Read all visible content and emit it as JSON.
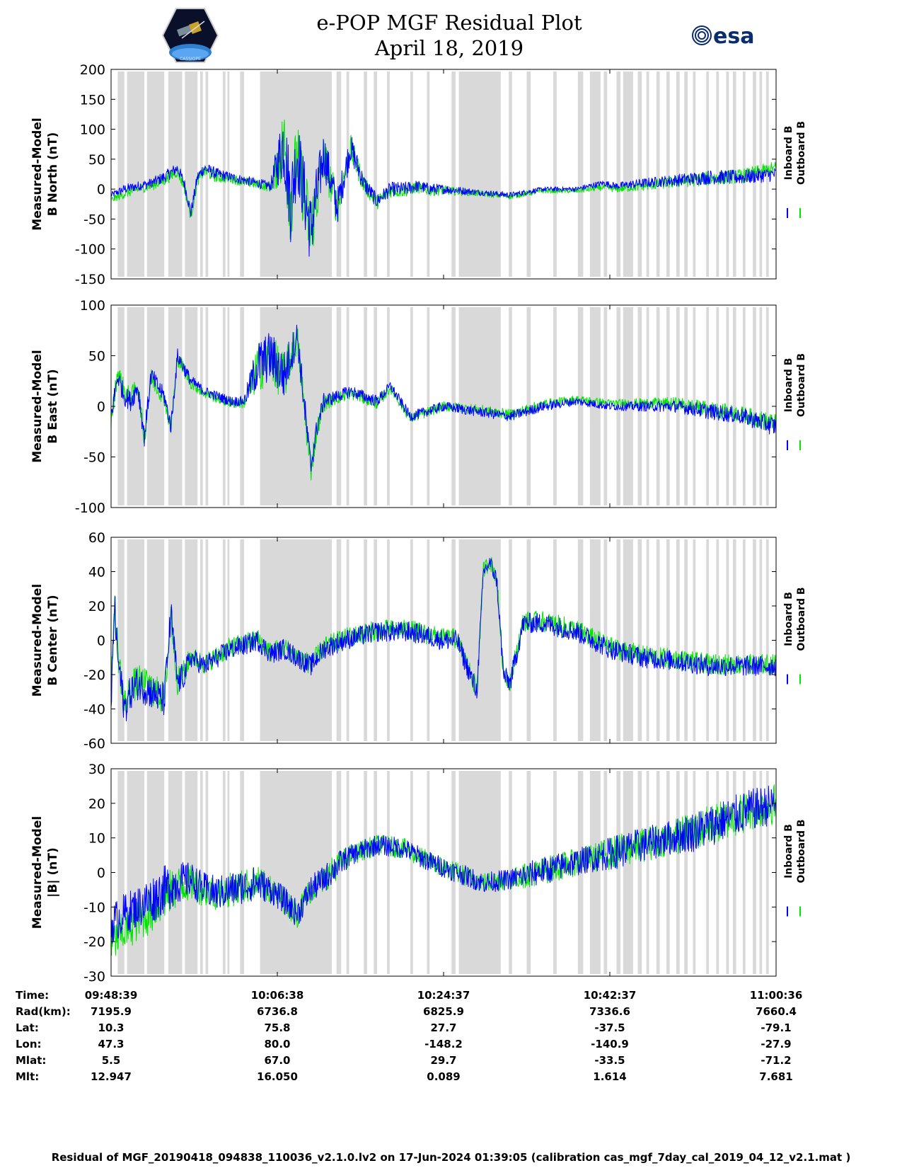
{
  "header": {
    "title_line1": "e-POP MGF Residual Plot",
    "title_line2": "April 18, 2019",
    "logo_left": "cassiope-epop-mission-logo",
    "logo_right": "esa-logo"
  },
  "colors": {
    "inboard": "#0000ff",
    "outboard": "#00e600",
    "shade": "#d9d9d9",
    "axis": "#000000"
  },
  "legend": {
    "inboard": "Inboard B",
    "outboard": "Outboard B"
  },
  "chart_data": [
    {
      "type": "line",
      "ylabel": [
        "Measured-Model",
        "B North (nT)"
      ],
      "ylim": [
        -150,
        200
      ],
      "yticks": [
        -150,
        -100,
        -50,
        0,
        50,
        100,
        150,
        200
      ],
      "x": [
        0,
        2,
        4,
        6,
        8,
        10,
        11,
        12,
        13,
        14,
        16,
        18,
        20,
        22,
        24,
        26,
        27,
        28,
        30,
        32,
        34,
        36,
        38,
        40,
        42,
        44,
        46,
        48,
        50,
        55,
        60,
        65,
        70,
        72,
        74,
        76,
        80,
        85,
        90,
        95,
        100
      ],
      "series": [
        {
          "name": "Inboard B",
          "values": [
            -10,
            0,
            5,
            10,
            20,
            35,
            10,
            -40,
            20,
            35,
            25,
            20,
            15,
            10,
            5,
            80,
            -20,
            60,
            -70,
            60,
            -30,
            70,
            10,
            -20,
            0,
            0,
            5,
            0,
            0,
            -5,
            -10,
            0,
            0,
            5,
            10,
            5,
            10,
            15,
            20,
            20,
            25
          ]
        },
        {
          "name": "Outboard B",
          "values": [
            -18,
            -8,
            0,
            5,
            15,
            30,
            5,
            -45,
            15,
            30,
            20,
            18,
            12,
            8,
            3,
            75,
            -22,
            55,
            -72,
            55,
            -32,
            68,
            8,
            -22,
            -2,
            -2,
            3,
            -2,
            -2,
            -7,
            -12,
            -3,
            -3,
            0,
            3,
            0,
            5,
            12,
            18,
            22,
            35
          ]
        }
      ],
      "envelope": [
        5,
        8,
        8,
        8,
        10,
        10,
        10,
        10,
        10,
        10,
        10,
        8,
        8,
        8,
        8,
        70,
        70,
        60,
        60,
        40,
        30,
        25,
        15,
        12,
        12,
        12,
        10,
        10,
        8,
        5,
        5,
        4,
        4,
        5,
        5,
        6,
        8,
        10,
        12,
        12,
        12
      ]
    },
    {
      "type": "line",
      "ylabel": [
        "Measured-Model",
        "B East (nT)"
      ],
      "ylim": [
        -100,
        100
      ],
      "yticks": [
        -100,
        -50,
        0,
        50,
        100
      ],
      "x": [
        0,
        1,
        2,
        3,
        4,
        5,
        6,
        8,
        9,
        10,
        12,
        14,
        16,
        18,
        20,
        22,
        24,
        26,
        28,
        30,
        31,
        32,
        34,
        36,
        38,
        40,
        42,
        45,
        50,
        55,
        60,
        65,
        70,
        75,
        80,
        85,
        90,
        95,
        100
      ],
      "series": [
        {
          "name": "Inboard B",
          "values": [
            -10,
            30,
            10,
            5,
            20,
            -30,
            30,
            10,
            -20,
            50,
            25,
            15,
            10,
            5,
            5,
            40,
            50,
            30,
            70,
            -60,
            -20,
            5,
            10,
            15,
            10,
            5,
            20,
            -10,
            0,
            -5,
            -10,
            0,
            5,
            0,
            0,
            0,
            -5,
            -10,
            -20
          ]
        },
        {
          "name": "Outboard B",
          "values": [
            -15,
            35,
            15,
            8,
            22,
            -32,
            28,
            8,
            -22,
            48,
            23,
            13,
            8,
            3,
            3,
            38,
            48,
            28,
            68,
            -62,
            -22,
            3,
            8,
            13,
            8,
            3,
            18,
            -12,
            0,
            -3,
            -8,
            2,
            7,
            3,
            3,
            3,
            -3,
            -8,
            -18
          ]
        }
      ],
      "envelope": [
        10,
        10,
        10,
        10,
        10,
        10,
        10,
        8,
        8,
        8,
        6,
        5,
        5,
        5,
        5,
        25,
        25,
        25,
        15,
        15,
        10,
        8,
        6,
        6,
        6,
        6,
        5,
        5,
        5,
        5,
        5,
        5,
        4,
        4,
        5,
        6,
        8,
        8,
        10
      ]
    },
    {
      "type": "line",
      "ylabel": [
        "Measured-Model",
        "B Center (nT)"
      ],
      "ylim": [
        -60,
        60
      ],
      "yticks": [
        -60,
        -40,
        -20,
        0,
        20,
        40,
        60
      ],
      "x": [
        0,
        0.5,
        1,
        2,
        3,
        4,
        6,
        8,
        9,
        10,
        11,
        12,
        14,
        16,
        18,
        20,
        22,
        24,
        26,
        28,
        30,
        32,
        35,
        40,
        45,
        50,
        52,
        54,
        55,
        56,
        57,
        58,
        59,
        60,
        62,
        65,
        70,
        75,
        80,
        85,
        90,
        95,
        100
      ],
      "series": [
        {
          "name": "Inboard B",
          "values": [
            -40,
            20,
            -10,
            -40,
            -30,
            -25,
            -30,
            -35,
            15,
            -25,
            -20,
            -10,
            -15,
            -10,
            -5,
            -3,
            0,
            -8,
            -5,
            -10,
            -15,
            -5,
            0,
            5,
            5,
            0,
            0,
            -20,
            -30,
            40,
            45,
            35,
            -20,
            -25,
            10,
            10,
            5,
            -5,
            -10,
            -12,
            -15,
            -15,
            -15
          ]
        },
        {
          "name": "Outboard B",
          "values": [
            -35,
            25,
            -5,
            -38,
            -28,
            -24,
            -28,
            -34,
            14,
            -24,
            -19,
            -9,
            -14,
            -9,
            -4,
            -2,
            1,
            -7,
            -4,
            -9,
            -14,
            -4,
            1,
            6,
            6,
            1,
            1,
            -19,
            -29,
            41,
            46,
            36,
            -19,
            -24,
            11,
            11,
            6,
            -4,
            -9,
            -11,
            -14,
            -14,
            -14
          ]
        }
      ],
      "envelope": [
        8,
        10,
        10,
        10,
        10,
        10,
        10,
        10,
        10,
        8,
        8,
        6,
        6,
        6,
        6,
        6,
        6,
        6,
        6,
        6,
        6,
        6,
        6,
        6,
        6,
        6,
        6,
        6,
        6,
        5,
        5,
        5,
        6,
        6,
        6,
        6,
        6,
        6,
        6,
        6,
        6,
        6,
        6
      ]
    },
    {
      "type": "line",
      "ylabel": [
        "Measured-Model",
        "|B| (nT)"
      ],
      "ylim": [
        -30,
        30
      ],
      "yticks": [
        -30,
        -20,
        -10,
        0,
        10,
        20,
        30
      ],
      "x": [
        0,
        2,
        4,
        6,
        8,
        10,
        12,
        14,
        16,
        18,
        20,
        22,
        24,
        26,
        28,
        30,
        32,
        34,
        36,
        40,
        44,
        48,
        52,
        56,
        60,
        64,
        68,
        72,
        76,
        80,
        84,
        88,
        92,
        96,
        100
      ],
      "series": [
        {
          "name": "Inboard B",
          "values": [
            -15,
            -12,
            -10,
            -8,
            -5,
            -3,
            -2,
            -5,
            -6,
            -5,
            -4,
            -3,
            -5,
            -8,
            -12,
            -5,
            -2,
            2,
            5,
            8,
            7,
            3,
            0,
            -3,
            -2,
            0,
            2,
            4,
            6,
            8,
            10,
            12,
            15,
            18,
            20
          ]
        },
        {
          "name": "Outboard B",
          "values": [
            -21,
            -17,
            -14,
            -11,
            -7,
            -4,
            -3,
            -5,
            -6,
            -5,
            -4,
            -3,
            -5,
            -8,
            -12,
            -5,
            -2,
            2,
            5,
            8,
            7,
            3,
            0,
            -3,
            -2,
            0,
            2,
            4,
            6,
            8,
            10,
            12,
            15,
            18,
            20
          ]
        }
      ],
      "envelope": [
        6,
        6,
        6,
        7,
        7,
        6,
        5,
        5,
        5,
        5,
        5,
        5,
        4,
        4,
        4,
        4,
        4,
        4,
        3,
        3,
        3,
        3,
        3,
        3,
        3,
        4,
        4,
        4,
        5,
        5,
        5,
        6,
        6,
        6,
        6
      ]
    }
  ],
  "shading": [
    [
      1.0,
      2.0
    ],
    [
      2.4,
      5.0
    ],
    [
      5.4,
      8.0
    ],
    [
      8.6,
      10.7
    ],
    [
      11.1,
      13.0
    ],
    [
      13.4,
      13.8
    ],
    [
      14.2,
      14.6
    ],
    [
      16.8,
      17.2
    ],
    [
      17.5,
      17.8
    ],
    [
      19.4,
      20.0
    ],
    [
      22.4,
      33.2
    ],
    [
      33.9,
      34.6
    ],
    [
      35.4,
      35.8
    ],
    [
      38.0,
      38.5
    ],
    [
      39.5,
      40.0
    ],
    [
      41.5,
      41.9
    ],
    [
      45.0,
      45.4
    ],
    [
      47.5,
      47.9
    ],
    [
      51.2,
      51.8
    ],
    [
      52.3,
      58.6
    ],
    [
      59.8,
      60.3
    ],
    [
      62.5,
      63.1
    ],
    [
      66.5,
      67.0
    ],
    [
      70.2,
      71.0
    ],
    [
      72.0,
      73.6
    ],
    [
      74.1,
      74.6
    ],
    [
      76.0,
      76.6
    ],
    [
      77.0,
      78.5
    ],
    [
      79.2,
      79.8
    ],
    [
      80.5,
      80.9
    ],
    [
      82.0,
      82.5
    ],
    [
      83.5,
      84.0
    ],
    [
      85.0,
      85.5
    ],
    [
      86.2,
      86.7
    ],
    [
      87.5,
      87.9
    ],
    [
      89.5,
      89.9
    ],
    [
      91.0,
      91.4
    ],
    [
      92.5,
      92.9
    ],
    [
      93.5,
      94.0
    ],
    [
      95.0,
      95.4
    ],
    [
      96.5,
      97.0
    ],
    [
      97.5,
      97.9
    ],
    [
      98.5,
      98.9
    ]
  ],
  "table": {
    "labels": [
      "Time:",
      "Rad(km):",
      "Lat:",
      "Lon:",
      "Mlat:",
      "Mlt:"
    ],
    "columns": [
      [
        "09:48:39",
        "7195.9",
        "10.3",
        "47.3",
        "5.5",
        "12.947"
      ],
      [
        "10:06:38",
        "6736.8",
        "75.8",
        "80.0",
        "67.0",
        "16.050"
      ],
      [
        "10:24:37",
        "6825.9",
        "27.7",
        "-148.2",
        "29.7",
        "0.089"
      ],
      [
        "10:42:37",
        "7336.6",
        "-37.5",
        "-140.9",
        "-33.5",
        "1.614"
      ],
      [
        "11:00:36",
        "7660.4",
        "-79.1",
        "-27.9",
        "-71.2",
        "7.681"
      ]
    ]
  },
  "footer": "Residual of MGF_20190418_094838_110036_v2.1.0.lv2 on 17-Jun-2024 01:39:05 (calibration cas_mgf_7day_cal_2019_04_12_v2.1.mat )"
}
